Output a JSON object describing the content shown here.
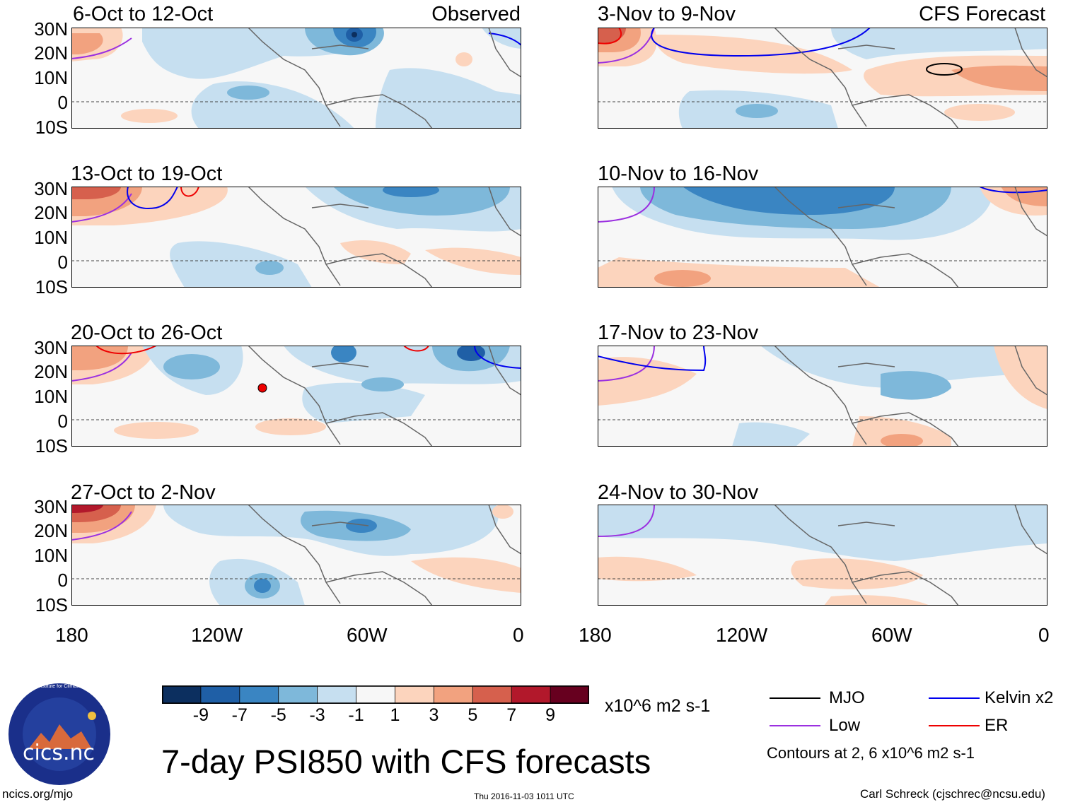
{
  "panels": {
    "observed": [
      {
        "title": "6-Oct to 12-Oct",
        "label": "Observed"
      },
      {
        "title": "13-Oct to 19-Oct"
      },
      {
        "title": "20-Oct to 26-Oct"
      },
      {
        "title": "27-Oct to 2-Nov"
      }
    ],
    "forecast": [
      {
        "title": "3-Nov to 9-Nov",
        "label": "CFS Forecast"
      },
      {
        "title": "10-Nov to 16-Nov"
      },
      {
        "title": "17-Nov to 23-Nov"
      },
      {
        "title": "24-Nov to 30-Nov"
      }
    ]
  },
  "axes": {
    "lat_labels": [
      "30N",
      "20N",
      "10N",
      "0",
      "10S"
    ],
    "lon_labels": [
      "180",
      "120W",
      "60W",
      "0"
    ]
  },
  "colorbar": {
    "labels": [
      "-9",
      "-7",
      "-5",
      "-3",
      "-1",
      "1",
      "3",
      "5",
      "7",
      "9"
    ],
    "colors": [
      "#0c2f5f",
      "#1f5fa6",
      "#3a85c2",
      "#7eb8da",
      "#c6dff0",
      "#f7f7f7",
      "#fcd4bd",
      "#f2a27f",
      "#d6604d",
      "#b2182b",
      "#67001f"
    ],
    "units": "x10^6 m2 s-1"
  },
  "legend": {
    "items": [
      {
        "label": "MJO",
        "color": "#000000"
      },
      {
        "label": "Kelvin x2",
        "color": "#0000ee"
      },
      {
        "label": "Low",
        "color": "#9b30e0"
      },
      {
        "label": "ER",
        "color": "#ee0000"
      }
    ],
    "note": "Contours at 2, 6 x10^6 m2 s-1"
  },
  "logo": {
    "text": "cics.nc",
    "ring_text": "Cooperative Institute for Climate and Satellites"
  },
  "main_title": "7-day PSI850 with CFS forecasts",
  "footer": {
    "left": "ncics.org/mjo",
    "center": "Thu 2016-11-03 1011 UTC",
    "right": "Carl Schreck (cjschrec@ncsu.edu)"
  }
}
